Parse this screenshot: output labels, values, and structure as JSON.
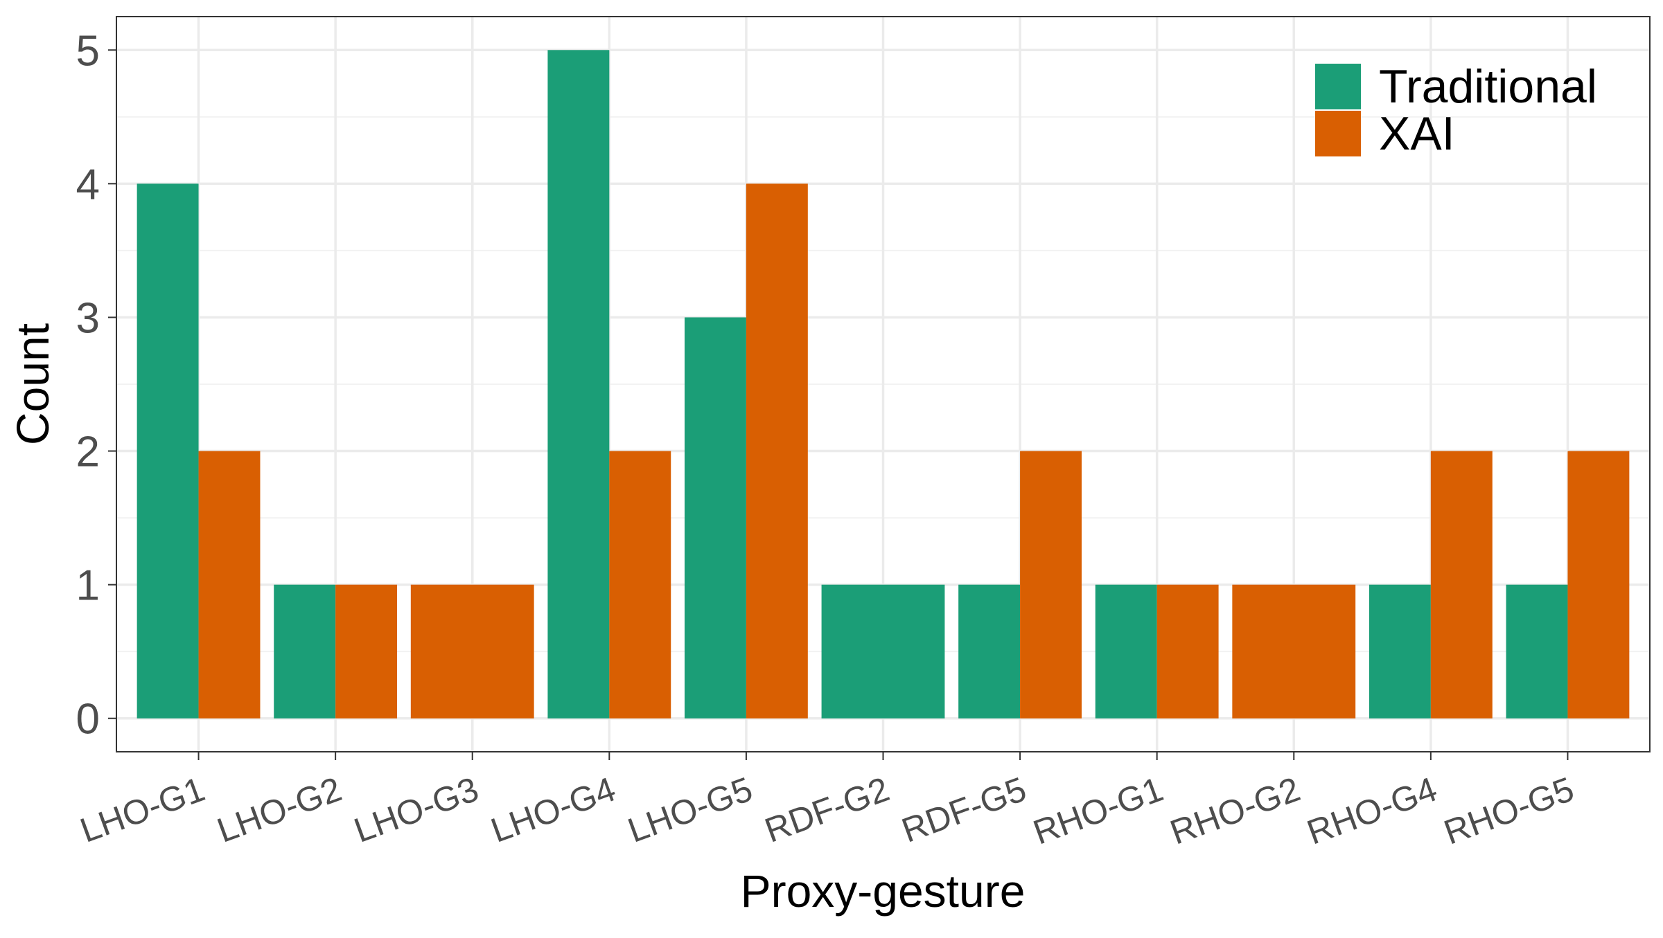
{
  "chart_data": {
    "type": "bar",
    "xlabel": "Proxy-gesture",
    "ylabel": "Count",
    "categories": [
      "LHO-G1",
      "LHO-G2",
      "LHO-G3",
      "LHO-G4",
      "LHO-G5",
      "RDF-G2",
      "RDF-G5",
      "RHO-G1",
      "RHO-G2",
      "RHO-G4",
      "RHO-G5"
    ],
    "series": [
      {
        "name": "Traditional",
        "color": "#1b9e77",
        "values": [
          4,
          1,
          0,
          5,
          3,
          1,
          1,
          1,
          0,
          1,
          1
        ]
      },
      {
        "name": "XAI",
        "color": "#d95f02",
        "values": [
          2,
          1,
          1,
          2,
          4,
          0,
          2,
          1,
          1,
          2,
          2
        ]
      }
    ],
    "ylim": [
      -0.25,
      5.25
    ],
    "yticks": [
      0,
      1,
      2,
      3,
      4,
      5
    ],
    "grid": true,
    "legend_position": "top-right",
    "bar_position": "dodge"
  }
}
